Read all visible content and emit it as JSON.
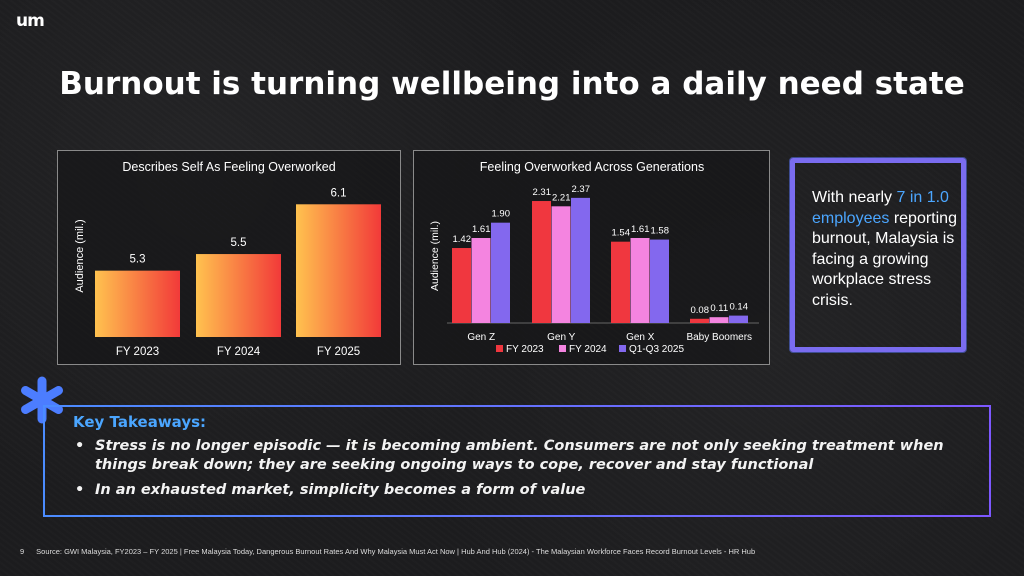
{
  "logo": "um",
  "title": "Burnout is turning wellbeing into a daily need state",
  "side_box": {
    "prefix": "With nearly ",
    "highlight": "7 in 1.0 employees",
    "suffix": " reporting burnout, Malaysia is facing a growing workplace stress crisis."
  },
  "takeaways": {
    "title": "Key Takeaways:",
    "items": [
      "Stress is no longer episodic — it is becoming ambient. Consumers are not only seeking treatment when things break down; they are seeking ongoing ways to cope, recover and stay functional",
      "In an exhausted market, simplicity becomes a form of value"
    ]
  },
  "footer": {
    "page": "9",
    "source": "Source: GWI Malaysia, FY2023 – FY 2025 | Free Malaysia Today, Dangerous Burnout Rates And Why Malaysia Must Act Now | Hub And Hub (2024) - The Malaysian Workforce Faces Record Burnout Levels - HR Hub"
  },
  "colors": {
    "fy2023": "#f0373f",
    "fy2024": "#f484e0",
    "q1q3_2025": "#8368ee",
    "accent": "#4ba6ff"
  },
  "chart_data": [
    {
      "type": "bar",
      "title": "Describes Self As Feeling Overworked",
      "ylabel": "Audience (mil.)",
      "categories": [
        "FY 2023",
        "FY 2024",
        "FY 2025"
      ],
      "values": [
        5.3,
        5.5,
        6.1
      ],
      "value_labels": [
        "5.3",
        "5.5",
        "6.1"
      ],
      "ylim": [
        4.5,
        6.2
      ],
      "grid": false
    },
    {
      "type": "bar",
      "title": "Feeling Overworked Across Generations",
      "ylabel": "Audience (mil.)",
      "categories": [
        "Gen Z",
        "Gen Y",
        "Gen X",
        "Baby Boomers"
      ],
      "series": [
        {
          "name": "FY 2023",
          "values": [
            1.42,
            2.31,
            1.54,
            0.08
          ],
          "labels": [
            "1.42",
            "2.31",
            "1.54",
            "0.08"
          ]
        },
        {
          "name": "FY 2024",
          "values": [
            1.61,
            2.21,
            1.61,
            0.11
          ],
          "labels": [
            "1.61",
            "2.21",
            "1.61",
            "0.11"
          ]
        },
        {
          "name": "Q1-Q3 2025",
          "values": [
            1.9,
            2.37,
            1.58,
            0.14
          ],
          "labels": [
            "1.90",
            "2.37",
            "1.58",
            "0.14"
          ]
        }
      ],
      "ylim": [
        0,
        2.5
      ],
      "legend": "bottom",
      "grid": false
    }
  ]
}
